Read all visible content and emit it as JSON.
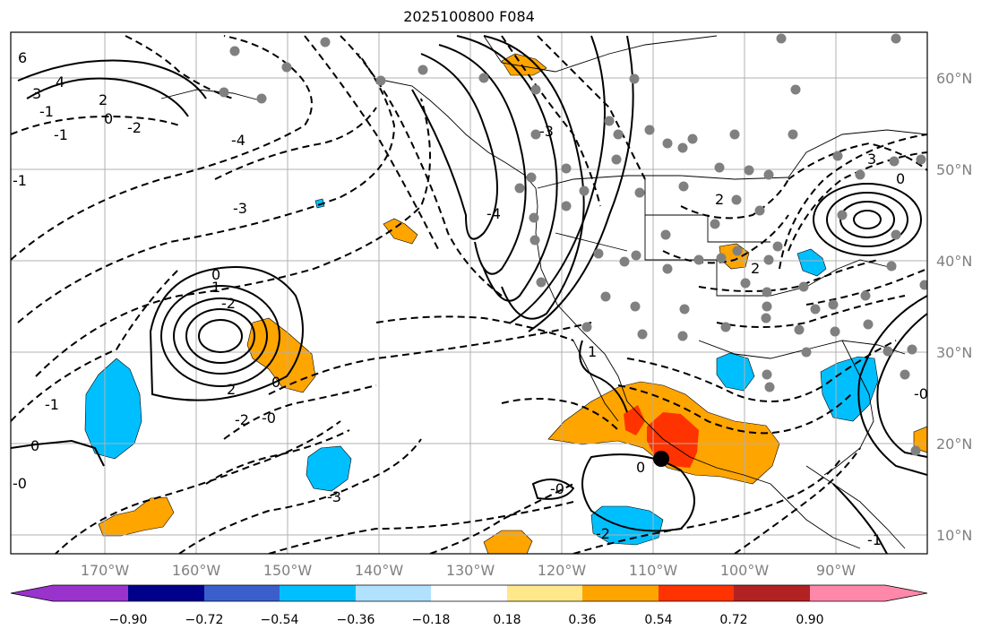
{
  "title": "2025100800 F084",
  "lat_labels": [
    "60°N",
    "50°N",
    "40°N",
    "30°N",
    "20°N",
    "10°N"
  ],
  "lon_labels": [
    "170°W",
    "160°W",
    "150°W",
    "140°W",
    "130°W",
    "120°W",
    "110°W",
    "100°W",
    "90°W"
  ],
  "colorbar": {
    "ticks": [
      "−0.90",
      "−0.72",
      "−0.54",
      "−0.36",
      "−0.18",
      "0.18",
      "0.36",
      "0.54",
      "0.72",
      "0.90"
    ],
    "colors": [
      "#9933cc",
      "#00008b",
      "#3a5fcd",
      "#00bfff",
      "#b0e2ff",
      "#ffffff",
      "#ffe88a",
      "#ffa500",
      "#ff3300",
      "#b22222",
      "#ff88aa"
    ]
  },
  "contour_labels": [
    "6",
    "4",
    "3",
    "2",
    "0",
    "-1",
    "-2",
    "-1",
    "-4",
    "-3",
    "-2",
    "1",
    "2",
    "0",
    "-0",
    "-2",
    "-1",
    "0",
    "-0",
    "0",
    "-0",
    "-2",
    "-3",
    "-4",
    "2",
    "0",
    "-0",
    "3",
    "1",
    "-1",
    "2",
    "-3",
    "0",
    "-1"
  ],
  "colors": {
    "positive_shading": "#ffa500",
    "strong_positive": "#ff3300",
    "negative_shading": "#00bfff",
    "dots": "#808080",
    "marker": "#000000"
  }
}
